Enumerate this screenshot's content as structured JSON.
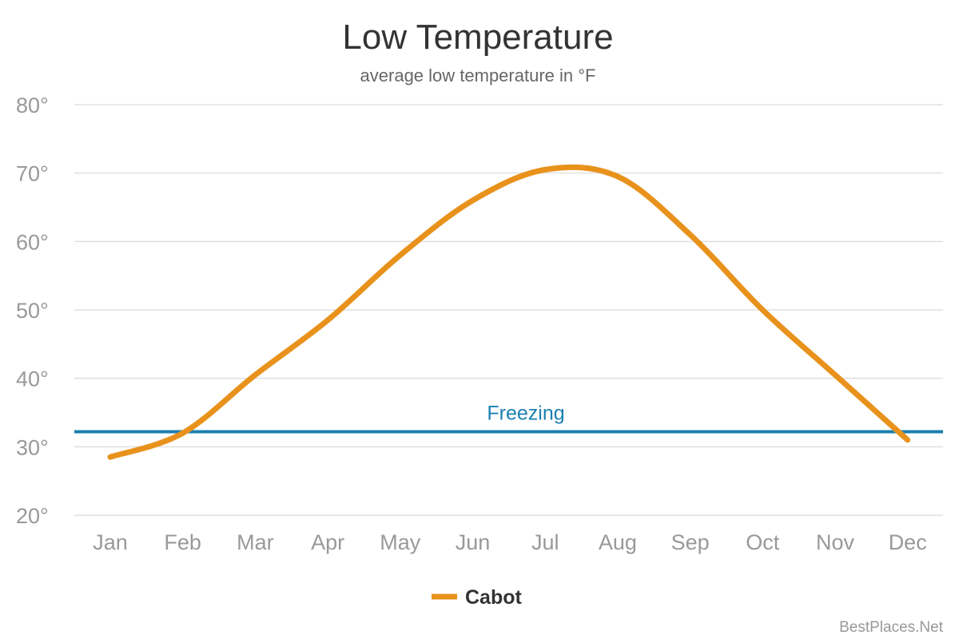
{
  "chart_data": {
    "type": "line",
    "title": "Low Temperature",
    "subtitle": "average low temperature in °F",
    "categories": [
      "Jan",
      "Feb",
      "Mar",
      "Apr",
      "May",
      "Jun",
      "Jul",
      "Aug",
      "Sep",
      "Oct",
      "Nov",
      "Dec"
    ],
    "series": [
      {
        "name": "Cabot",
        "color": "#e8921c",
        "values": [
          28.5,
          32,
          40.5,
          48.5,
          58,
          66,
          70.5,
          69.5,
          61,
          50,
          40.5,
          31
        ]
      }
    ],
    "reference_line": {
      "label": "Freezing",
      "value": 32.2,
      "color": "#1a7fb0"
    },
    "y_ticks": [
      "80°",
      "70°",
      "60°",
      "50°",
      "40°",
      "30°",
      "20°"
    ],
    "y_tick_values": [
      80,
      70,
      60,
      50,
      40,
      30,
      20
    ],
    "ylim": [
      20,
      80
    ],
    "grid": true,
    "legend_position": "bottom-center",
    "credit": "BestPlaces.Net"
  }
}
